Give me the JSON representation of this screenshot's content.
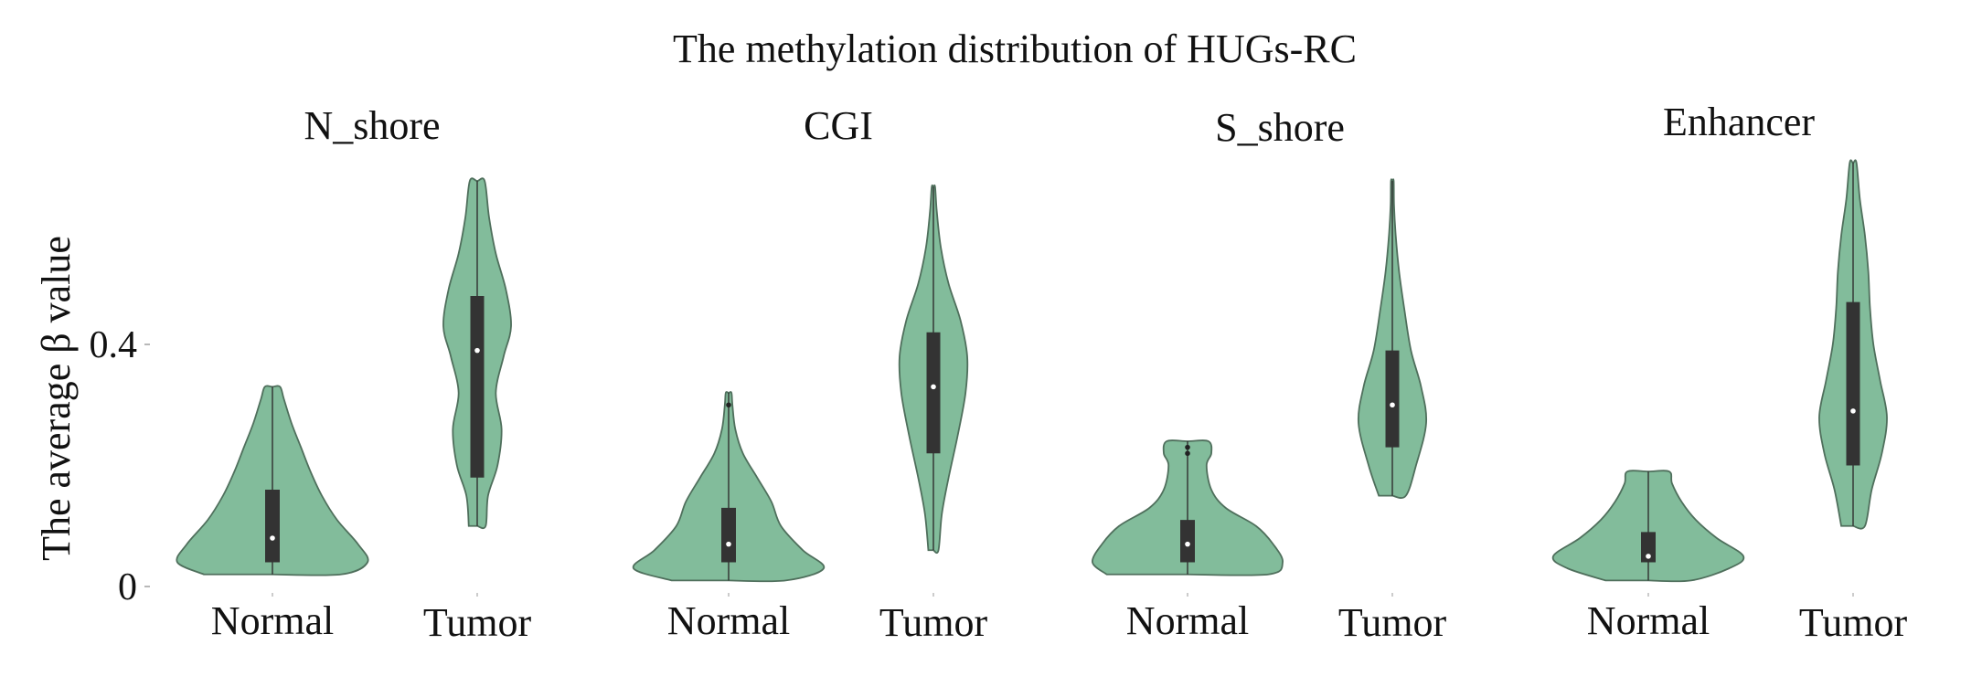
{
  "chart_data": {
    "type": "violin",
    "title": "The methylation distribution of HUGs-RC",
    "ylabel": "The average β value",
    "ylim": [
      0,
      0.7
    ],
    "yticks": [
      0,
      0.4
    ],
    "ytick_labels": [
      "0",
      "0.4"
    ],
    "grid": false,
    "colors": {
      "violin_fill": "#82bc9b",
      "box": "#333333",
      "median": "#ffffff"
    },
    "panels": [
      {
        "title": "N_shore",
        "groups": [
          {
            "label": "Normal",
            "min": 0.02,
            "q1": 0.04,
            "median": 0.08,
            "q3": 0.16,
            "max": 0.33,
            "outliers": [],
            "profile": [
              [
                0.02,
                0.72
              ],
              [
                0.04,
                1.0
              ],
              [
                0.07,
                0.9
              ],
              [
                0.11,
                0.68
              ],
              [
                0.15,
                0.52
              ],
              [
                0.19,
                0.4
              ],
              [
                0.23,
                0.3
              ],
              [
                0.27,
                0.2
              ],
              [
                0.31,
                0.12
              ],
              [
                0.33,
                0.08
              ]
            ]
          },
          {
            "label": "Tumor",
            "min": 0.1,
            "q1": 0.18,
            "median": 0.39,
            "q3": 0.48,
            "max": 0.67,
            "outliers": [],
            "profile": [
              [
                0.1,
                0.25
              ],
              [
                0.15,
                0.32
              ],
              [
                0.2,
                0.6
              ],
              [
                0.26,
                0.72
              ],
              [
                0.32,
                0.55
              ],
              [
                0.38,
                0.78
              ],
              [
                0.43,
                1.0
              ],
              [
                0.49,
                0.85
              ],
              [
                0.55,
                0.55
              ],
              [
                0.61,
                0.35
              ],
              [
                0.67,
                0.22
              ]
            ]
          }
        ]
      },
      {
        "title": "CGI",
        "groups": [
          {
            "label": "Normal",
            "min": 0.01,
            "q1": 0.04,
            "median": 0.07,
            "q3": 0.13,
            "max": 0.32,
            "outliers": [
              0.3
            ],
            "profile": [
              [
                0.01,
                0.6
              ],
              [
                0.03,
                1.0
              ],
              [
                0.06,
                0.78
              ],
              [
                0.1,
                0.55
              ],
              [
                0.14,
                0.45
              ],
              [
                0.18,
                0.3
              ],
              [
                0.22,
                0.15
              ],
              [
                0.26,
                0.07
              ],
              [
                0.3,
                0.04
              ],
              [
                0.32,
                0.03
              ]
            ]
          },
          {
            "label": "Tumor",
            "min": 0.06,
            "q1": 0.22,
            "median": 0.33,
            "q3": 0.42,
            "max": 0.66,
            "outliers": [],
            "profile": [
              [
                0.06,
                0.15
              ],
              [
                0.12,
                0.25
              ],
              [
                0.18,
                0.45
              ],
              [
                0.25,
                0.72
              ],
              [
                0.32,
                0.95
              ],
              [
                0.38,
                1.0
              ],
              [
                0.44,
                0.8
              ],
              [
                0.5,
                0.45
              ],
              [
                0.56,
                0.22
              ],
              [
                0.62,
                0.1
              ],
              [
                0.66,
                0.05
              ]
            ]
          }
        ]
      },
      {
        "title": "S_shore",
        "groups": [
          {
            "label": "Normal",
            "min": 0.02,
            "q1": 0.04,
            "median": 0.07,
            "q3": 0.11,
            "max": 0.24,
            "outliers": [
              0.22,
              0.23
            ],
            "profile": [
              [
                0.02,
                0.85
              ],
              [
                0.04,
                1.0
              ],
              [
                0.07,
                0.9
              ],
              [
                0.1,
                0.72
              ],
              [
                0.13,
                0.4
              ],
              [
                0.16,
                0.25
              ],
              [
                0.2,
                0.2
              ],
              [
                0.22,
                0.25
              ],
              [
                0.24,
                0.22
              ]
            ]
          },
          {
            "label": "Tumor",
            "min": 0.15,
            "q1": 0.23,
            "median": 0.3,
            "q3": 0.39,
            "max": 0.67,
            "outliers": [],
            "profile": [
              [
                0.15,
                0.4
              ],
              [
                0.2,
                0.7
              ],
              [
                0.27,
                1.0
              ],
              [
                0.33,
                0.85
              ],
              [
                0.39,
                0.55
              ],
              [
                0.46,
                0.35
              ],
              [
                0.52,
                0.2
              ],
              [
                0.58,
                0.1
              ],
              [
                0.63,
                0.05
              ],
              [
                0.67,
                0.04
              ]
            ]
          }
        ]
      },
      {
        "title": "Enhancer",
        "groups": [
          {
            "label": "Normal",
            "min": 0.01,
            "q1": 0.04,
            "median": 0.05,
            "q3": 0.09,
            "max": 0.19,
            "outliers": [],
            "profile": [
              [
                0.01,
                0.45
              ],
              [
                0.03,
                0.85
              ],
              [
                0.05,
                1.0
              ],
              [
                0.08,
                0.72
              ],
              [
                0.11,
                0.5
              ],
              [
                0.14,
                0.35
              ],
              [
                0.17,
                0.25
              ],
              [
                0.19,
                0.22
              ]
            ]
          },
          {
            "label": "Tumor",
            "min": 0.1,
            "q1": 0.2,
            "median": 0.29,
            "q3": 0.47,
            "max": 0.7,
            "outliers": [],
            "profile": [
              [
                0.1,
                0.35
              ],
              [
                0.16,
                0.55
              ],
              [
                0.22,
                0.85
              ],
              [
                0.28,
                1.0
              ],
              [
                0.34,
                0.8
              ],
              [
                0.4,
                0.6
              ],
              [
                0.46,
                0.5
              ],
              [
                0.52,
                0.45
              ],
              [
                0.58,
                0.35
              ],
              [
                0.64,
                0.2
              ],
              [
                0.7,
                0.1
              ]
            ]
          }
        ]
      }
    ]
  }
}
